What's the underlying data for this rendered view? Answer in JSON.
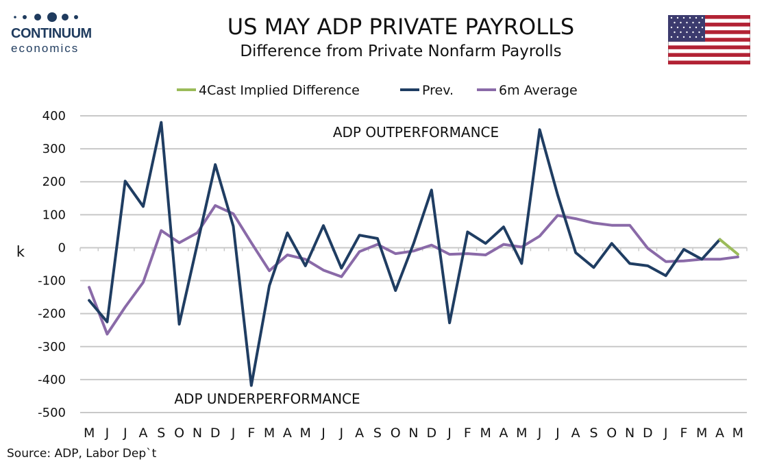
{
  "header": {
    "title": "US MAY ADP PRIVATE PAYROLLS",
    "subtitle": "Difference from Private Nonfarm Payrolls",
    "logo_name": "CONTINUUM",
    "logo_sub": "economics",
    "flag_icon": "us-flag-icon"
  },
  "source": "Source: ADP, Labor Dep`t",
  "colors": {
    "prev": "#1f3d62",
    "avg": "#8a6aa8",
    "forecast": "#9bbb59",
    "grid": "#c8c8c8",
    "logo": "#1f3b5e"
  },
  "chart_data": {
    "type": "line",
    "title": "US MAY ADP PRIVATE PAYROLLS",
    "subtitle": "Difference from Private Nonfarm Payrolls",
    "ylabel": "k",
    "xlabel": "",
    "ylim": [
      -500,
      400
    ],
    "yticks": [
      400,
      300,
      200,
      100,
      0,
      -100,
      -200,
      -300,
      -400,
      -500
    ],
    "grid": true,
    "legend_position": "top",
    "categories": [
      "M",
      "J",
      "J",
      "A",
      "S",
      "O",
      "N",
      "D",
      "J",
      "F",
      "M",
      "A",
      "M",
      "J",
      "J",
      "A",
      "S",
      "O",
      "N",
      "D",
      "J",
      "F",
      "M",
      "A",
      "M",
      "J",
      "J",
      "A",
      "S",
      "O",
      "N",
      "D",
      "J",
      "F",
      "M",
      "A",
      "M"
    ],
    "annotations": [
      "ADP OUTPERFORMANCE",
      "ADP UNDERPERFORMANCE"
    ],
    "series": [
      {
        "name": "4Cast Implied Difference",
        "values": [
          null,
          null,
          null,
          null,
          null,
          null,
          null,
          null,
          null,
          null,
          null,
          null,
          null,
          null,
          null,
          null,
          null,
          null,
          null,
          null,
          null,
          null,
          null,
          null,
          null,
          null,
          null,
          null,
          null,
          null,
          null,
          null,
          null,
          null,
          null,
          25,
          -20
        ]
      },
      {
        "name": "Prev.",
        "values": [
          -160,
          -225,
          202,
          125,
          380,
          -232,
          10,
          252,
          65,
          -418,
          -115,
          45,
          -55,
          67,
          -62,
          38,
          28,
          -130,
          12,
          175,
          -228,
          48,
          13,
          63,
          -48,
          358,
          160,
          -15,
          -60,
          13,
          -48,
          -55,
          -85,
          -5,
          -35,
          25,
          null
        ]
      },
      {
        "name": "6m Average",
        "values": [
          -120,
          -262,
          -180,
          -105,
          52,
          15,
          45,
          128,
          103,
          15,
          -70,
          -22,
          -35,
          -68,
          -88,
          -12,
          10,
          -18,
          -10,
          8,
          -20,
          -18,
          -22,
          10,
          2,
          35,
          98,
          88,
          75,
          68,
          68,
          -2,
          -42,
          -40,
          -35,
          -35,
          -28
        ]
      }
    ]
  }
}
